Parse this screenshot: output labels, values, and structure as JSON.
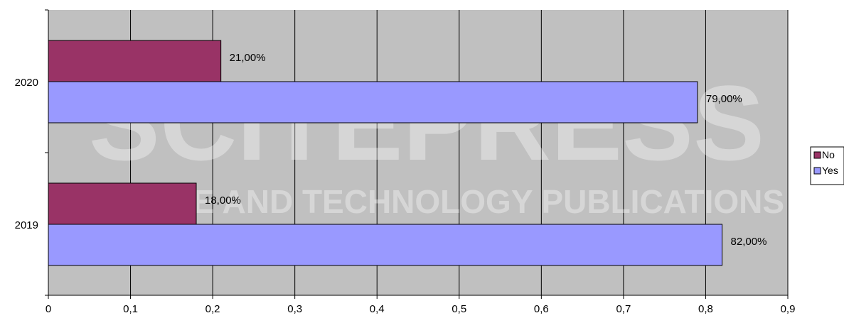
{
  "watermark": {
    "line1": "SCITEPRESS",
    "line2": "SCIENCE AND TECHNOLOGY PUBLICATIONS"
  },
  "colors": {
    "plot_background": "#c0c0c0",
    "gridline": "#000000",
    "no": "#993366",
    "yes": "#9999ff"
  },
  "chart_data": {
    "type": "bar",
    "orientation": "horizontal",
    "categories": [
      "2020",
      "2019"
    ],
    "series": [
      {
        "name": "No",
        "values": [
          0.21,
          0.18
        ],
        "labels": [
          "21,00%",
          "18,00%"
        ]
      },
      {
        "name": "Yes",
        "values": [
          0.79,
          0.82
        ],
        "labels": [
          "79,00%",
          "82,00%"
        ]
      }
    ],
    "xlim": [
      0,
      0.9
    ],
    "xticks": [
      0,
      0.1,
      0.2,
      0.3,
      0.4,
      0.5,
      0.6,
      0.7,
      0.8,
      0.9
    ],
    "xtick_labels": [
      "0",
      "0,1",
      "0,2",
      "0,3",
      "0,4",
      "0,5",
      "0,6",
      "0,7",
      "0,8",
      "0,9"
    ],
    "grid": true,
    "legend": {
      "position": "right",
      "entries": [
        "No",
        "Yes"
      ]
    }
  }
}
